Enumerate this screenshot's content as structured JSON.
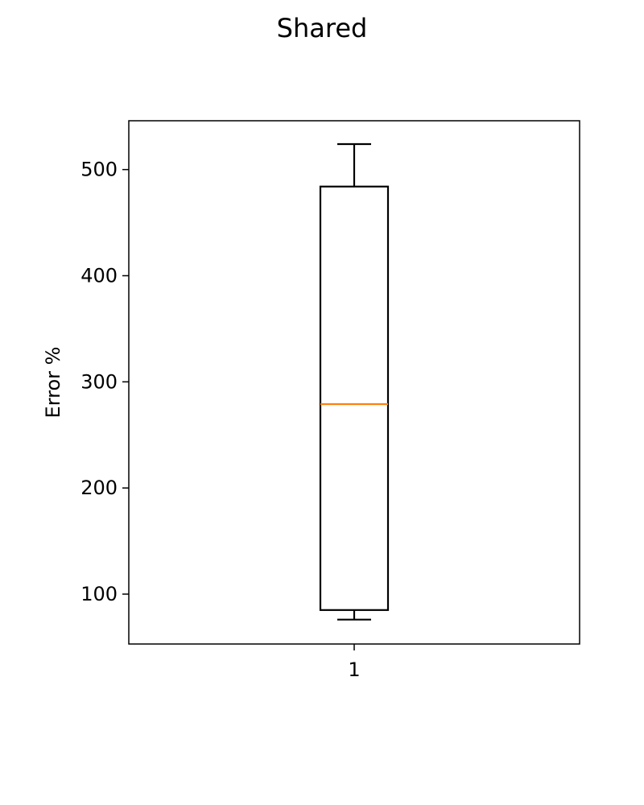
{
  "chart_data": {
    "type": "box",
    "title": "Shared",
    "xlabel": "",
    "ylabel": "Error %",
    "categories": [
      "1"
    ],
    "boxes": [
      {
        "category": "1",
        "whisker_low": 76,
        "q1": 85,
        "median": 279,
        "q3": 484,
        "whisker_high": 524
      }
    ],
    "ylim": [
      53,
      546
    ],
    "yticks": [
      100,
      200,
      300,
      400,
      500
    ],
    "grid": false,
    "colors": {
      "box": "#000000",
      "median": "#ff7f0e",
      "axes": "#000000",
      "background": "#ffffff"
    }
  }
}
